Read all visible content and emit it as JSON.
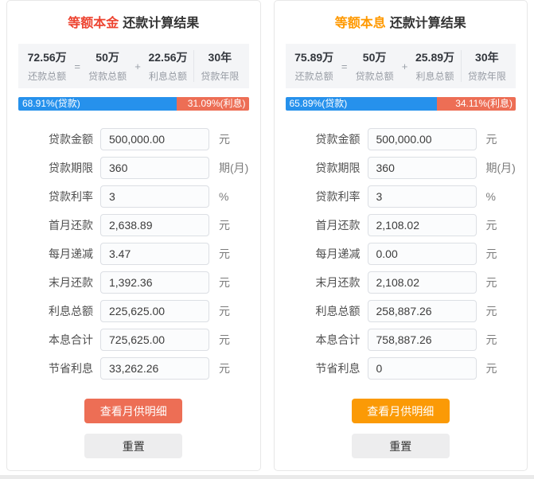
{
  "colors": {
    "principal_accent": "#ed4431",
    "interest_accent": "#ff9900",
    "bar_loan_blue": "#2691ec",
    "bar_interest_red": "#ed6e55",
    "detail_button_red": "#ed6e55",
    "detail_button_orange": "#fb9a06"
  },
  "panels": [
    {
      "title_method": "等额本金",
      "title_suffix": "还款计算结果",
      "accent_color": "#ed4431",
      "op_eq": "=",
      "op_plus": "+",
      "summary": [
        {
          "value": "72.56万",
          "label": "还款总额"
        },
        {
          "value": "50万",
          "label": "贷款总额"
        },
        {
          "value": "22.56万",
          "label": "利息总额"
        },
        {
          "value": "30年",
          "label": "贷款年限"
        }
      ],
      "bar": {
        "loan_width": "68.91%",
        "loan_label": "68.91%(贷款)",
        "interest_label": "31.09%(利息)",
        "loan_color": "#2691ec",
        "interest_color": "#ed6e55"
      },
      "fields": [
        {
          "label": "贷款金额",
          "value": "500,000.00",
          "unit": "元"
        },
        {
          "label": "贷款期限",
          "value": "360",
          "unit": "期(月)"
        },
        {
          "label": "贷款利率",
          "value": "3",
          "unit": "%"
        },
        {
          "label": "首月还款",
          "value": "2,638.89",
          "unit": "元"
        },
        {
          "label": "每月递减",
          "value": "3.47",
          "unit": "元"
        },
        {
          "label": "末月还款",
          "value": "1,392.36",
          "unit": "元"
        },
        {
          "label": "利息总额",
          "value": "225,625.00",
          "unit": "元"
        },
        {
          "label": "本息合计",
          "value": "725,625.00",
          "unit": "元"
        },
        {
          "label": "节省利息",
          "value": "33,262.26",
          "unit": "元"
        }
      ],
      "buttons": {
        "detail": "查看月供明细",
        "detail_color": "#ed6e55",
        "reset": "重置"
      }
    },
    {
      "title_method": "等额本息",
      "title_suffix": "还款计算结果",
      "accent_color": "#ff9900",
      "op_eq": "=",
      "op_plus": "+",
      "summary": [
        {
          "value": "75.89万",
          "label": "还款总额"
        },
        {
          "value": "50万",
          "label": "贷款总额"
        },
        {
          "value": "25.89万",
          "label": "利息总额"
        },
        {
          "value": "30年",
          "label": "贷款年限"
        }
      ],
      "bar": {
        "loan_width": "65.89%",
        "loan_label": "65.89%(贷款)",
        "interest_label": "34.11%(利息)",
        "loan_color": "#2691ec",
        "interest_color": "#ed6e55"
      },
      "fields": [
        {
          "label": "贷款金额",
          "value": "500,000.00",
          "unit": "元"
        },
        {
          "label": "贷款期限",
          "value": "360",
          "unit": "期(月)"
        },
        {
          "label": "贷款利率",
          "value": "3",
          "unit": "%"
        },
        {
          "label": "首月还款",
          "value": "2,108.02",
          "unit": "元"
        },
        {
          "label": "每月递减",
          "value": "0.00",
          "unit": "元"
        },
        {
          "label": "末月还款",
          "value": "2,108.02",
          "unit": "元"
        },
        {
          "label": "利息总额",
          "value": "258,887.26",
          "unit": "元"
        },
        {
          "label": "本息合计",
          "value": "758,887.26",
          "unit": "元"
        },
        {
          "label": "节省利息",
          "value": "0",
          "unit": "元"
        }
      ],
      "buttons": {
        "detail": "查看月供明细",
        "detail_color": "#fb9a06",
        "reset": "重置"
      }
    }
  ]
}
